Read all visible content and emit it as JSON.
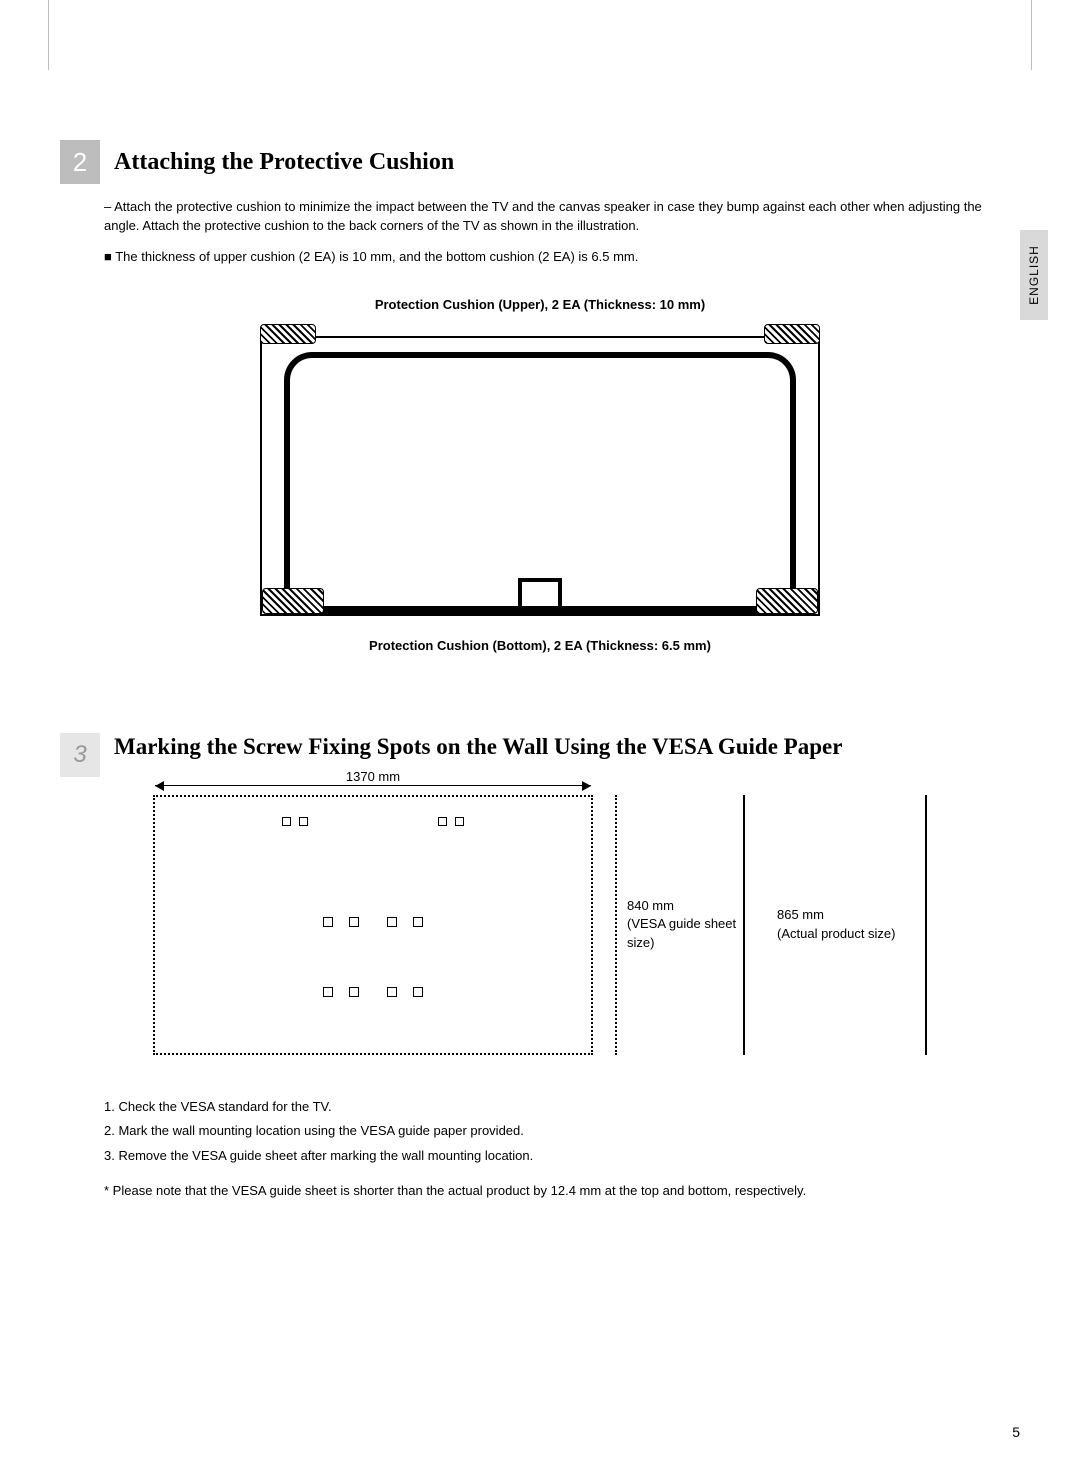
{
  "side_tab": "ENGLISH",
  "section2": {
    "number": "2",
    "title": "Attaching the Protective Cushion",
    "para": "– Attach the protective cushion to minimize the impact between the TV and the canvas speaker in case they bump against each other when adjusting the angle. Attach the protective cushion to the back corners of the TV as shown in the illustration.",
    "note": "■  The thickness of upper cushion (2 EA) is 10 mm, and the bottom cushion (2 EA) is 6.5 mm.",
    "caption_top": "Protection Cushion (Upper), 2 EA (Thickness: 10 mm)",
    "caption_bottom": "Protection Cushion (Bottom), 2 EA (Thickness: 6.5 mm)"
  },
  "section3": {
    "number": "3",
    "title": "Marking the Screw Fixing Spots on the Wall Using the VESA Guide Paper",
    "dim_width": "1370 mm",
    "bracket1_line1": "840 mm",
    "bracket1_line2": "(VESA guide sheet size)",
    "bracket2_line1": "865 mm",
    "bracket2_line2": "(Actual product size)",
    "steps": {
      "s1": "1. Check the VESA standard for the TV.",
      "s2": "2. Mark the wall mounting location using the VESA guide paper provided.",
      "s3": "3. Remove the VESA guide sheet after marking the wall mounting location."
    },
    "footnote": "* Please note that the VESA guide sheet is shorter than the actual product by 12.4 mm at the top and bottom, respectively."
  },
  "page_number": "5",
  "colors": {
    "bg": "#ffffff",
    "text": "#000000",
    "num_box": "#bdbdbd",
    "num_box2": "#e6e6e6",
    "side_tab_bg": "#d9d9d9"
  }
}
